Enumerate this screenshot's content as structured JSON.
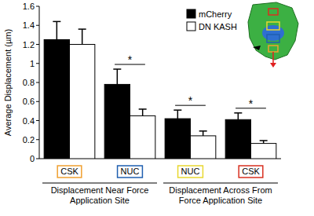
{
  "chart_data": {
    "type": "bar",
    "y_label": "Average Displacement (µm)",
    "categories": [
      "CSK",
      "NUC",
      "NUC",
      "CSK"
    ],
    "group_labels": [
      "Displacement Near Force Application Site",
      "Displacement Across From Force Application Site"
    ],
    "series": [
      {
        "name": "mCherry",
        "color": "#000000",
        "values": [
          1.25,
          0.78,
          0.42,
          0.41
        ],
        "errors": [
          0.19,
          0.16,
          0.09,
          0.07
        ]
      },
      {
        "name": "DN KASH",
        "color": "#ffffff",
        "values": [
          1.2,
          0.45,
          0.24,
          0.16
        ],
        "errors": [
          0.16,
          0.07,
          0.05,
          0.03
        ]
      }
    ],
    "significance": [
      null,
      "*",
      "*",
      "*"
    ],
    "ylim": [
      0,
      1.6
    ],
    "yticks": [
      0,
      0.2,
      0.4,
      0.6,
      0.8,
      1,
      1.2,
      1.4,
      1.6
    ],
    "legend": "top-right",
    "grid": false
  }
}
